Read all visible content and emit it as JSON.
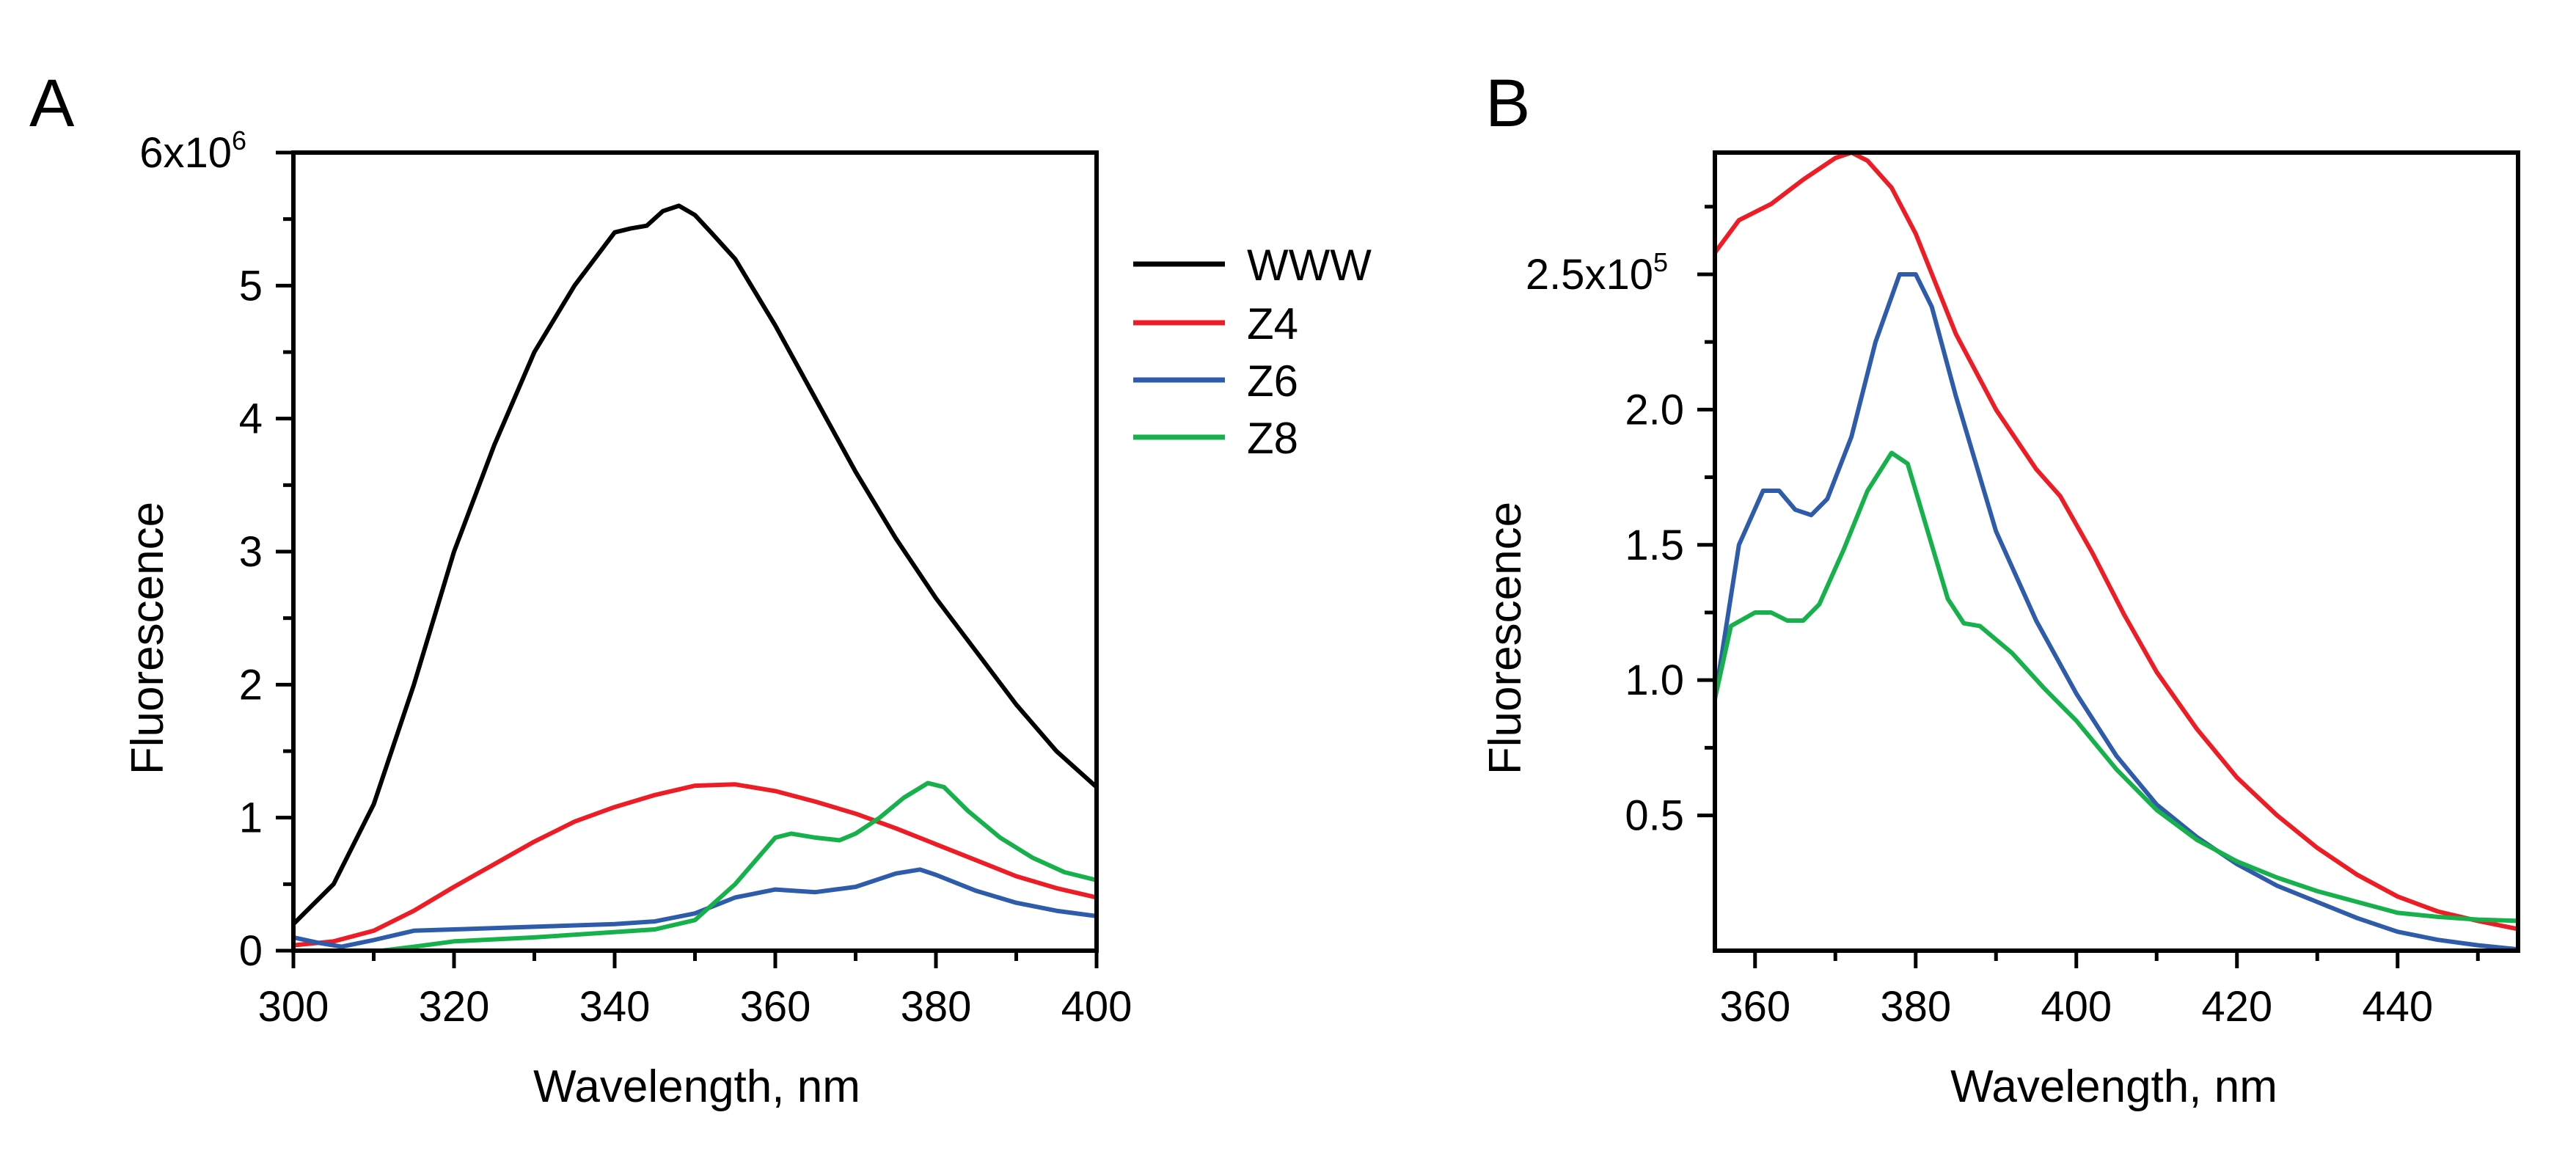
{
  "colors": {
    "WWW": "#000000",
    "Z4": "#ee1c24",
    "Z6": "#2e5caa",
    "Z8": "#16b14b"
  },
  "chart_data": [
    {
      "type": "line",
      "panel_label": "A",
      "xlabel": "Wavelength, nm",
      "ylabel": "Fluorescence",
      "xlim": [
        300,
        400
      ],
      "ylim": [
        0,
        6000000
      ],
      "xticks_major": [
        300,
        320,
        340,
        360,
        380,
        400
      ],
      "xtick_labels": [
        "300",
        "320",
        "340",
        "360",
        "380",
        "400"
      ],
      "xticks_minor": [
        310,
        330,
        350,
        370,
        390
      ],
      "yticks_major": [
        0,
        1000000,
        2000000,
        3000000,
        4000000,
        5000000
      ],
      "ytick_labels": [
        "0",
        "1",
        "2",
        "3",
        "4",
        "5"
      ],
      "yticks_minor": [
        500000,
        1500000,
        2500000,
        3500000,
        4500000,
        5500000
      ],
      "ytop_label": {
        "value": 6000000,
        "base": "6x10",
        "exp": "6"
      },
      "legend": [
        "WWW",
        "Z4",
        "Z6",
        "Z8"
      ],
      "legend_position": "right",
      "series": [
        {
          "name": "WWW",
          "x": [
            300,
            305,
            310,
            315,
            320,
            325,
            330,
            335,
            340,
            342,
            344,
            346,
            348,
            350,
            352,
            355,
            360,
            365,
            370,
            375,
            380,
            385,
            390,
            395,
            400
          ],
          "values": [
            200000,
            500000,
            1100000,
            2000000,
            3000000,
            3800000,
            4500000,
            5000000,
            5400000,
            5430000,
            5450000,
            5560000,
            5600000,
            5530000,
            5400000,
            5200000,
            4700000,
            4150000,
            3600000,
            3100000,
            2650000,
            2250000,
            1850000,
            1500000,
            1230000
          ]
        },
        {
          "name": "Z4",
          "x": [
            300,
            305,
            310,
            315,
            320,
            325,
            330,
            335,
            340,
            345,
            350,
            355,
            360,
            365,
            370,
            375,
            380,
            385,
            390,
            395,
            400
          ],
          "values": [
            40000,
            70000,
            150000,
            300000,
            480000,
            650000,
            820000,
            970000,
            1080000,
            1170000,
            1240000,
            1250000,
            1200000,
            1120000,
            1030000,
            920000,
            800000,
            680000,
            560000,
            470000,
            400000
          ]
        },
        {
          "name": "Z6",
          "x": [
            300,
            303,
            306,
            310,
            315,
            320,
            330,
            340,
            345,
            350,
            355,
            360,
            365,
            370,
            375,
            378,
            380,
            385,
            390,
            395,
            400
          ],
          "values": [
            100000,
            60000,
            30000,
            80000,
            150000,
            160000,
            180000,
            200000,
            220000,
            280000,
            400000,
            460000,
            440000,
            480000,
            580000,
            610000,
            570000,
            450000,
            360000,
            300000,
            260000
          ]
        },
        {
          "name": "Z8",
          "x": [
            311,
            315,
            320,
            330,
            340,
            345,
            350,
            355,
            360,
            362,
            365,
            368,
            370,
            373,
            376,
            379,
            381,
            384,
            388,
            392,
            396,
            400
          ],
          "values": [
            0,
            30000,
            70000,
            100000,
            140000,
            160000,
            230000,
            500000,
            850000,
            880000,
            850000,
            830000,
            880000,
            1000000,
            1150000,
            1260000,
            1230000,
            1050000,
            850000,
            700000,
            590000,
            530000
          ]
        }
      ]
    },
    {
      "type": "line",
      "panel_label": "B",
      "xlabel": "Wavelength, nm",
      "ylabel": "Fluorescence",
      "xlim": [
        355,
        455
      ],
      "ylim": [
        0,
        295000
      ],
      "xticks_major": [
        360,
        380,
        400,
        420,
        440
      ],
      "xtick_labels": [
        "360",
        "380",
        "400",
        "420",
        "440"
      ],
      "xticks_minor": [
        370,
        390,
        410,
        430,
        450
      ],
      "yticks_major": [
        50000,
        100000,
        150000,
        200000,
        250000
      ],
      "ytick_labels": [
        "0.5",
        "1.0",
        "1.5",
        "2.0",
        ""
      ],
      "yticks_minor": [
        75000,
        125000,
        175000,
        225000,
        275000
      ],
      "ytop_label": {
        "value": 250000,
        "base": "2.5x10",
        "exp": "5"
      },
      "series": [
        {
          "name": "Z4",
          "x": [
            355,
            358,
            362,
            366,
            370,
            372,
            374,
            377,
            380,
            385,
            390,
            395,
            398,
            402,
            406,
            410,
            415,
            420,
            425,
            430,
            435,
            440,
            445,
            450,
            455
          ],
          "values": [
            258000,
            270000,
            276000,
            285000,
            293000,
            295000,
            292000,
            282000,
            265000,
            228000,
            200000,
            178000,
            168000,
            147000,
            124000,
            103000,
            82000,
            64000,
            50000,
            38000,
            28000,
            20000,
            14500,
            11000,
            8000
          ]
        },
        {
          "name": "Z6",
          "x": [
            355,
            358,
            361,
            363,
            365,
            367,
            369,
            372,
            375,
            378,
            380,
            382,
            385,
            390,
            395,
            400,
            405,
            410,
            415,
            420,
            425,
            430,
            435,
            440,
            445,
            450,
            455
          ],
          "values": [
            93000,
            150000,
            170000,
            170000,
            163000,
            161000,
            167000,
            190000,
            225000,
            250000,
            250000,
            238000,
            205000,
            155000,
            122000,
            95000,
            72000,
            54000,
            42000,
            32000,
            24000,
            18000,
            12000,
            7000,
            4000,
            2000,
            500
          ]
        },
        {
          "name": "Z8",
          "x": [
            355,
            357,
            360,
            362,
            364,
            366,
            368,
            371,
            374,
            377,
            379,
            381,
            384,
            386,
            388,
            392,
            396,
            400,
            405,
            410,
            415,
            420,
            425,
            430,
            435,
            440,
            445,
            450,
            455
          ],
          "values": [
            93000,
            120000,
            125000,
            125000,
            122000,
            122000,
            128000,
            148000,
            170000,
            184000,
            180000,
            160000,
            130000,
            121000,
            120000,
            110000,
            97000,
            85000,
            67000,
            52000,
            41000,
            33000,
            27000,
            22000,
            18000,
            14000,
            12500,
            11500,
            11000
          ]
        }
      ]
    }
  ]
}
